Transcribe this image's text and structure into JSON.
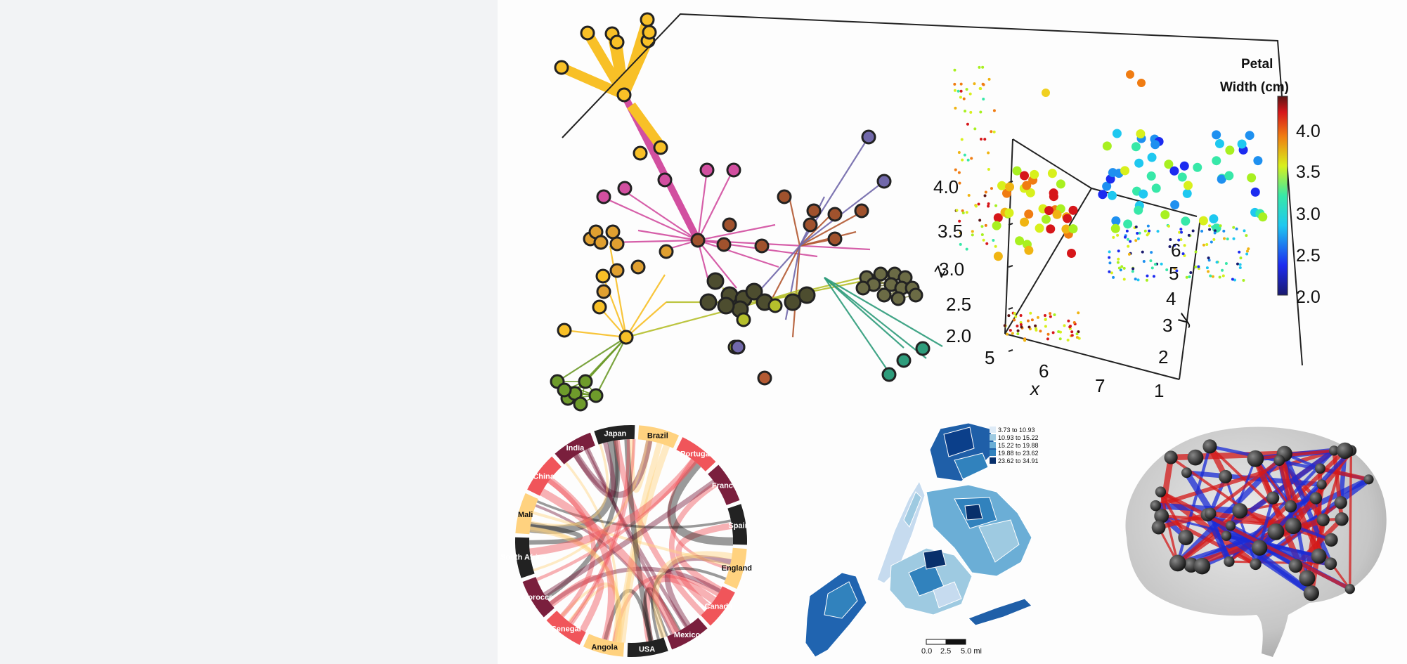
{
  "colors": {
    "yellow": "#f8c027",
    "pink": "#d24fa0",
    "olive": "#b5bf2c",
    "green": "#6e9b2b",
    "teal": "#2e9c7b",
    "brown": "#b35a33",
    "purple": "#7168aa",
    "red": "#d22",
    "blue": "#1a2bd6",
    "dark": "#2b2b2b"
  },
  "scatter3d": {
    "colorbar_title_line1": "Petal",
    "colorbar_title_line2": "Width (cm)",
    "colorbar_ticks": [
      "4.0",
      "3.5",
      "3.0",
      "2.5",
      "2.0"
    ],
    "z_ticks": [
      "4.0",
      "3.5",
      "3.0",
      "2.5",
      "2.0"
    ],
    "x_ticks": [
      "5",
      "6",
      "7"
    ],
    "y_ticks": [
      "6",
      "5",
      "4",
      "3",
      "2",
      "1"
    ],
    "x_label": "x",
    "y_label": "y",
    "z_label": "z"
  },
  "chord": {
    "labels": [
      "Brazil",
      "Portugal",
      "France",
      "Spain",
      "England",
      "Canada",
      "Mexico",
      "USA",
      "Angola",
      "Senegal",
      "Morocco",
      "South Africa",
      "Mali",
      "China",
      "India",
      "Japan"
    ]
  },
  "choropleth": {
    "legend": [
      "3.73 to 10.93",
      "10.93 to 15.22",
      "15.22 to 19.88",
      "19.88 to 23.62",
      "23.62 to 34.91"
    ],
    "legend_colors": [
      "#deebf7",
      "#9ecae1",
      "#6baed6",
      "#3182bd",
      "#08306b"
    ],
    "scale_labels": [
      "0.0",
      "2.5",
      "5.0 mi"
    ]
  }
}
